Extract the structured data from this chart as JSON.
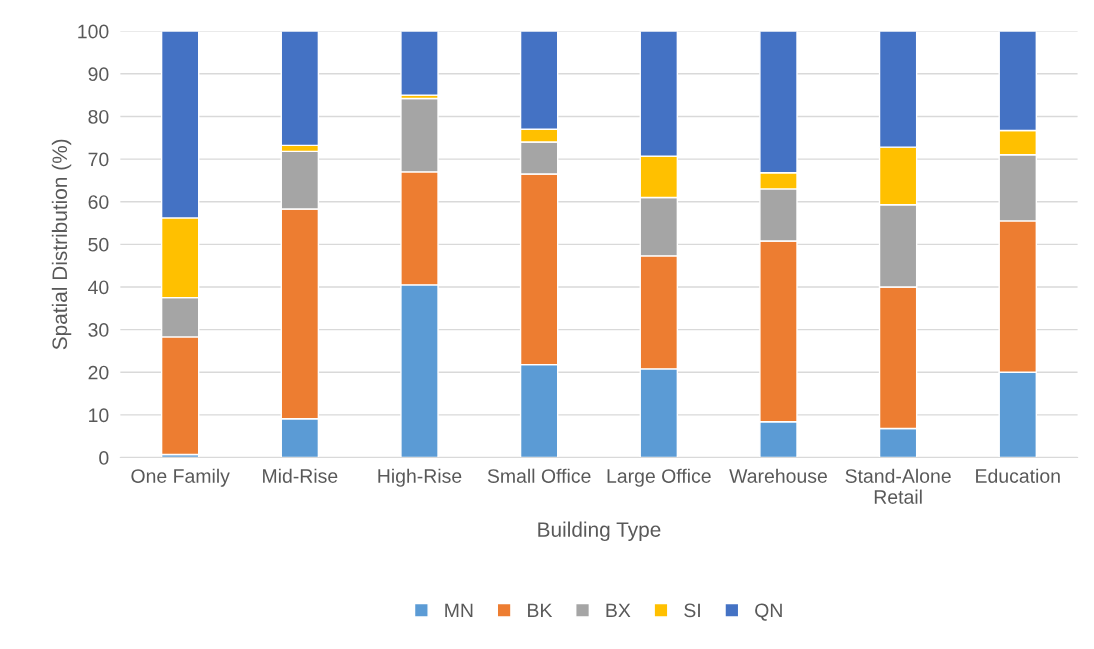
{
  "chart_data": {
    "type": "bar",
    "stacked": true,
    "xlabel": "Building Type",
    "ylabel": "Spatial Distribution (%)",
    "categories": [
      "One Family",
      "Mid-Rise",
      "High-Rise",
      "Small Office",
      "Large Office",
      "Warehouse",
      "Stand-Alone Retail",
      "Education"
    ],
    "series": [
      {
        "name": "MN",
        "color": "#5b9bd5",
        "values": [
          0.7,
          9.1,
          40.5,
          21.8,
          20.8,
          8.4,
          6.8,
          20.0
        ]
      },
      {
        "name": "BK",
        "color": "#ed7d31",
        "values": [
          27.6,
          49.2,
          26.5,
          44.7,
          26.5,
          42.4,
          33.2,
          35.5
        ]
      },
      {
        "name": "BX",
        "color": "#a5a5a5",
        "values": [
          9.2,
          13.5,
          17.2,
          7.5,
          13.7,
          12.2,
          19.3,
          15.5
        ]
      },
      {
        "name": "SI",
        "color": "#ffc000",
        "values": [
          18.7,
          1.4,
          0.8,
          3.0,
          9.7,
          3.8,
          13.5,
          5.7
        ]
      },
      {
        "name": "QN",
        "color": "#4472c4",
        "values": [
          43.8,
          26.8,
          15.0,
          23.0,
          29.3,
          33.2,
          27.2,
          23.3
        ]
      }
    ],
    "ylim": [
      0,
      100
    ],
    "yticks": [
      0,
      10,
      20,
      30,
      40,
      50,
      60,
      70,
      80,
      90,
      100
    ],
    "grid": "y",
    "legend": "bottom"
  }
}
